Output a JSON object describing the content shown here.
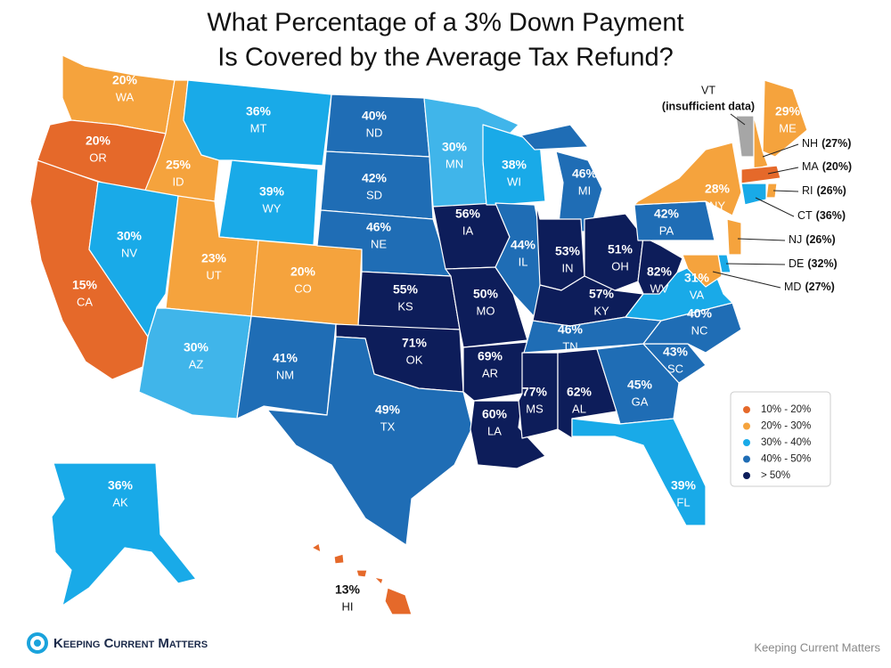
{
  "title": [
    "What Percentage of a 3% Down Payment",
    "Is Covered by the Average Tax Refund?"
  ],
  "states": [
    {
      "name": "WA",
      "value": "20%",
      "color": "#f5a33d"
    },
    {
      "name": "OR",
      "value": "20%",
      "color": "#e5692a"
    },
    {
      "name": "CA",
      "value": "15%",
      "color": "#e5692a"
    },
    {
      "name": "ID",
      "value": "25%",
      "color": "#f5a33d"
    },
    {
      "name": "NV",
      "value": "30%",
      "color": "#19aae8"
    },
    {
      "name": "MT",
      "value": "36%",
      "color": "#19aae8"
    },
    {
      "name": "WY",
      "value": "39%",
      "color": "#19aae8"
    },
    {
      "name": "UT",
      "value": "23%",
      "color": "#f5a33d"
    },
    {
      "name": "CO",
      "value": "20%",
      "color": "#f5a33d"
    },
    {
      "name": "AZ",
      "value": "30%",
      "color": "#40b5ea"
    },
    {
      "name": "NM",
      "value": "41%",
      "color": "#1f6db5"
    },
    {
      "name": "ND",
      "value": "40%",
      "color": "#1f6db5"
    },
    {
      "name": "SD",
      "value": "42%",
      "color": "#1f6db5"
    },
    {
      "name": "NE",
      "value": "46%",
      "color": "#1f6db5"
    },
    {
      "name": "KS",
      "value": "55%",
      "color": "#0d1d5a"
    },
    {
      "name": "OK",
      "value": "71%",
      "color": "#0d1d5a"
    },
    {
      "name": "TX",
      "value": "49%",
      "color": "#1f6db5"
    },
    {
      "name": "MN",
      "value": "30%",
      "color": "#40b5ea"
    },
    {
      "name": "IA",
      "value": "56%",
      "color": "#0d1d5a"
    },
    {
      "name": "MO",
      "value": "50%",
      "color": "#0d1d5a"
    },
    {
      "name": "AR",
      "value": "69%",
      "color": "#0d1d5a"
    },
    {
      "name": "LA",
      "value": "60%",
      "color": "#0d1d5a"
    },
    {
      "name": "WI",
      "value": "38%",
      "color": "#19aae8"
    },
    {
      "name": "IL",
      "value": "44%",
      "color": "#1f6db5"
    },
    {
      "name": "MI",
      "value": "46%",
      "color": "#1f6db5"
    },
    {
      "name": "IN",
      "value": "53%",
      "color": "#0d1d5a"
    },
    {
      "name": "OH",
      "value": "51%",
      "color": "#0d1d5a"
    },
    {
      "name": "KY",
      "value": "57%",
      "color": "#0d1d5a"
    },
    {
      "name": "TN",
      "value": "46%",
      "color": "#1f6db5"
    },
    {
      "name": "MS",
      "value": "77%",
      "color": "#0d1d5a"
    },
    {
      "name": "AL",
      "value": "62%",
      "color": "#0d1d5a"
    },
    {
      "name": "GA",
      "value": "45%",
      "color": "#1f6db5"
    },
    {
      "name": "FL",
      "value": "39%",
      "color": "#19aae8"
    },
    {
      "name": "SC",
      "value": "43%",
      "color": "#1f6db5"
    },
    {
      "name": "NC",
      "value": "40%",
      "color": "#1f6db5"
    },
    {
      "name": "VA",
      "value": "31%",
      "color": "#19aae8"
    },
    {
      "name": "WV",
      "value": "82%",
      "color": "#0d1d5a"
    },
    {
      "name": "PA",
      "value": "42%",
      "color": "#1f6db5"
    },
    {
      "name": "NY",
      "value": "28%",
      "color": "#f5a33d"
    },
    {
      "name": "ME",
      "value": "29%",
      "color": "#f5a33d"
    },
    {
      "name": "AK",
      "value": "36%",
      "color": "#19aae8"
    },
    {
      "name": "HI",
      "value": "13%",
      "color": "#e5692a"
    }
  ],
  "callouts": [
    {
      "name": "VT",
      "value": "(insufficient data)",
      "color": "#a6a6a6"
    },
    {
      "name": "NH",
      "value": "(27%)",
      "color": "#f5a33d"
    },
    {
      "name": "MA",
      "value": "(20%)",
      "color": "#e5692a"
    },
    {
      "name": "RI",
      "value": "(26%)",
      "color": "#f5a33d"
    },
    {
      "name": "CT",
      "value": "(36%)",
      "color": "#19aae8"
    },
    {
      "name": "NJ",
      "value": "(26%)",
      "color": "#f5a33d"
    },
    {
      "name": "DE",
      "value": "(32%)",
      "color": "#19aae8"
    },
    {
      "name": "MD",
      "value": "(27%)",
      "color": "#f5a33d"
    }
  ],
  "legend": [
    {
      "label": "10% - 20%",
      "color": "#e5692a"
    },
    {
      "label": "20% - 30%",
      "color": "#f5a33d"
    },
    {
      "label": "30% - 40%",
      "color": "#19aae8"
    },
    {
      "label": "40% - 50%",
      "color": "#1f6db5"
    },
    {
      "label": "> 50%",
      "color": "#0d1d5a"
    }
  ],
  "footer": {
    "logo": "Keeping Current Matters",
    "credit": "Keeping Current Matters"
  }
}
